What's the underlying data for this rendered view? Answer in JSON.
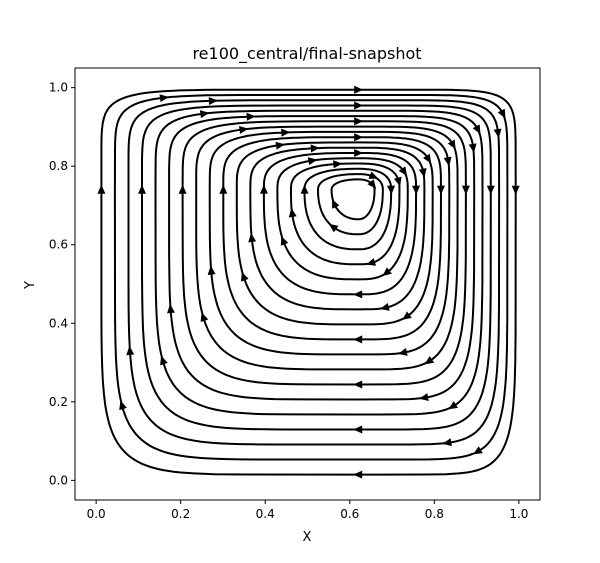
{
  "chart_data": {
    "type": "streamplot",
    "title": "re100_central/final-snapshot",
    "xlabel": "X",
    "ylabel": "Y",
    "xlim": [
      -0.05,
      1.05
    ],
    "ylim": [
      -0.05,
      1.05
    ],
    "xticks": [
      0.0,
      0.2,
      0.4,
      0.6,
      0.8,
      1.0
    ],
    "xtick_labels": [
      "0.0",
      "0.2",
      "0.4",
      "0.6",
      "0.8",
      "1.0"
    ],
    "yticks": [
      0.0,
      0.2,
      0.4,
      0.6,
      0.8,
      1.0
    ],
    "ytick_labels": [
      "0.0",
      "0.2",
      "0.4",
      "0.6",
      "0.8",
      "1.0"
    ],
    "grid": false,
    "line_color": "#000000",
    "flow": {
      "kind": "lid-driven cavity recirculation",
      "rotation": "clockwise",
      "vortex_center": [
        0.62,
        0.74
      ],
      "domain": [
        [
          0.0,
          1.0
        ],
        [
          0.0,
          1.0
        ]
      ]
    }
  }
}
